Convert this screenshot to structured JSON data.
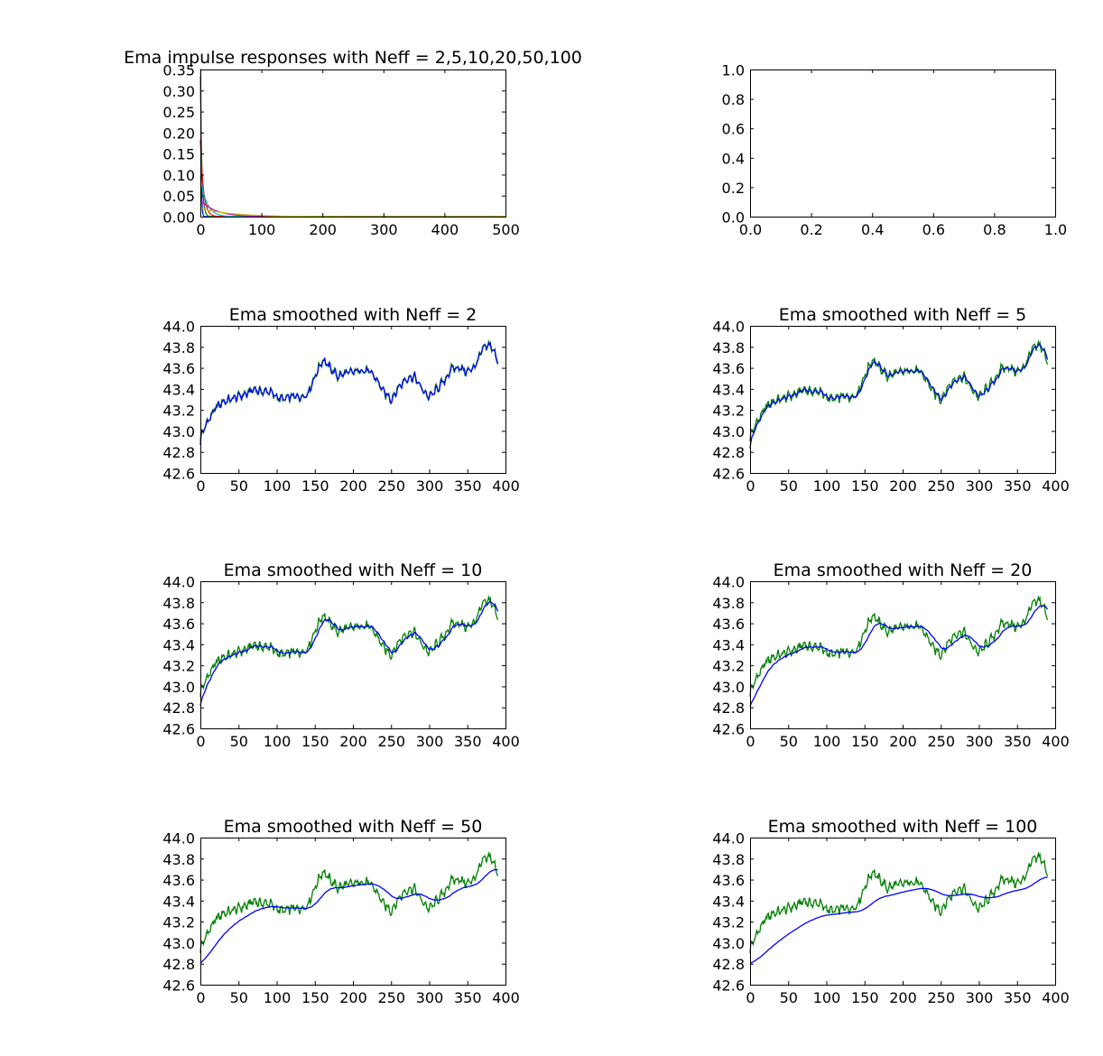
{
  "chart_data": [
    {
      "type": "line",
      "title": "Ema impulse responses with Neff = 2,5,10,20,50,100",
      "xlabel": "",
      "ylabel": "",
      "xlim": [
        0,
        500
      ],
      "ylim": [
        0,
        0.35
      ],
      "xticks": [
        "0",
        "100",
        "200",
        "300",
        "400",
        "500"
      ],
      "yticks": [
        "0.00",
        "0.05",
        "0.10",
        "0.15",
        "0.20",
        "0.25",
        "0.30",
        "0.35"
      ],
      "grid": false,
      "decay_neff": [
        2,
        5,
        10,
        20,
        50,
        100
      ],
      "series_colors": [
        "#0000ff",
        "#008000",
        "#ff0000",
        "#00bfbf",
        "#bf00bf",
        "#bfbf00"
      ]
    },
    {
      "type": "line",
      "title": "",
      "xlim": [
        0,
        1
      ],
      "ylim": [
        0,
        1
      ],
      "xticks": [
        "0.0",
        "0.2",
        "0.4",
        "0.6",
        "0.8",
        "1.0"
      ],
      "yticks": [
        "0.0",
        "0.2",
        "0.4",
        "0.6",
        "0.8",
        "1.0"
      ],
      "grid": false,
      "series": []
    },
    {
      "type": "line",
      "title": "Ema smoothed with Neff = 2",
      "neff": 2,
      "xlim": [
        0,
        400
      ],
      "ylim": [
        42.6,
        44.0
      ],
      "xticks": [
        "0",
        "50",
        "100",
        "150",
        "200",
        "250",
        "300",
        "350",
        "400"
      ],
      "yticks": [
        "42.6",
        "42.8",
        "43.0",
        "43.2",
        "43.4",
        "43.6",
        "43.8",
        "44.0"
      ],
      "grid": false,
      "raw_color": "#008000",
      "smooth_color": "#0000ff"
    },
    {
      "type": "line",
      "title": "Ema smoothed with Neff = 5",
      "neff": 5,
      "xlim": [
        0,
        400
      ],
      "ylim": [
        42.6,
        44.0
      ],
      "xticks": [
        "0",
        "50",
        "100",
        "150",
        "200",
        "250",
        "300",
        "350",
        "400"
      ],
      "yticks": [
        "42.6",
        "42.8",
        "43.0",
        "43.2",
        "43.4",
        "43.6",
        "43.8",
        "44.0"
      ],
      "grid": false,
      "raw_color": "#008000",
      "smooth_color": "#0000ff"
    },
    {
      "type": "line",
      "title": "Ema smoothed with Neff = 10",
      "neff": 10,
      "xlim": [
        0,
        400
      ],
      "ylim": [
        42.6,
        44.0
      ],
      "xticks": [
        "0",
        "50",
        "100",
        "150",
        "200",
        "250",
        "300",
        "350",
        "400"
      ],
      "yticks": [
        "42.6",
        "42.8",
        "43.0",
        "43.2",
        "43.4",
        "43.6",
        "43.8",
        "44.0"
      ],
      "grid": false,
      "raw_color": "#008000",
      "smooth_color": "#0000ff"
    },
    {
      "type": "line",
      "title": "Ema smoothed with Neff = 20",
      "neff": 20,
      "xlim": [
        0,
        400
      ],
      "ylim": [
        42.6,
        44.0
      ],
      "xticks": [
        "0",
        "50",
        "100",
        "150",
        "200",
        "250",
        "300",
        "350",
        "400"
      ],
      "yticks": [
        "42.6",
        "42.8",
        "43.0",
        "43.2",
        "43.4",
        "43.6",
        "43.8",
        "44.0"
      ],
      "grid": false,
      "raw_color": "#008000",
      "smooth_color": "#0000ff"
    },
    {
      "type": "line",
      "title": "Ema smoothed with Neff = 50",
      "neff": 50,
      "xlim": [
        0,
        400
      ],
      "ylim": [
        42.6,
        44.0
      ],
      "xticks": [
        "0",
        "50",
        "100",
        "150",
        "200",
        "250",
        "300",
        "350",
        "400"
      ],
      "yticks": [
        "42.6",
        "42.8",
        "43.0",
        "43.2",
        "43.4",
        "43.6",
        "43.8",
        "44.0"
      ],
      "grid": false,
      "raw_color": "#008000",
      "smooth_color": "#0000ff"
    },
    {
      "type": "line",
      "title": "Ema smoothed with Neff = 100",
      "neff": 100,
      "xlim": [
        0,
        400
      ],
      "ylim": [
        42.6,
        44.0
      ],
      "xticks": [
        "0",
        "50",
        "100",
        "150",
        "200",
        "250",
        "300",
        "350",
        "400"
      ],
      "yticks": [
        "42.6",
        "42.8",
        "43.0",
        "43.2",
        "43.4",
        "43.6",
        "43.8",
        "44.0"
      ],
      "grid": false,
      "raw_color": "#008000",
      "smooth_color": "#0000ff"
    }
  ],
  "price_series": {
    "x_step": 10,
    "x": [
      0,
      10,
      20,
      30,
      40,
      50,
      60,
      70,
      80,
      90,
      100,
      110,
      120,
      130,
      140,
      150,
      160,
      170,
      180,
      190,
      200,
      210,
      220,
      230,
      240,
      250,
      260,
      270,
      280,
      290,
      300,
      310,
      320,
      330,
      340,
      350,
      360,
      370,
      380,
      390
    ],
    "y": [
      42.95,
      43.1,
      43.22,
      43.28,
      43.3,
      43.33,
      43.35,
      43.4,
      43.37,
      43.38,
      43.32,
      43.3,
      43.33,
      43.32,
      43.35,
      43.52,
      43.68,
      43.6,
      43.52,
      43.55,
      43.56,
      43.58,
      43.57,
      43.5,
      43.37,
      43.3,
      43.42,
      43.5,
      43.52,
      43.4,
      43.32,
      43.4,
      43.48,
      43.6,
      43.6,
      43.56,
      43.62,
      43.78,
      43.82,
      43.67
    ]
  }
}
